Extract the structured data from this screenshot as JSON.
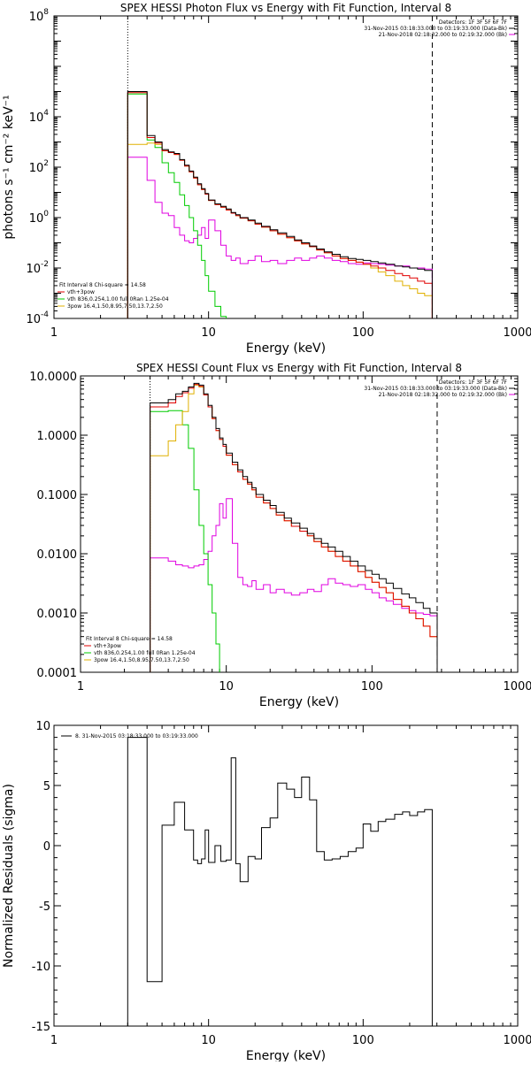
{
  "colors": {
    "total": "#000000",
    "thermal": "#00cc00",
    "powerlaw": "#e0b000",
    "background": "#e000e0",
    "sum": "#e00000"
  },
  "chart_data": [
    {
      "type": "line",
      "title": "SPEX HESSI Photon Flux vs Energy with Fit Function, Interval 8",
      "xlabel": "Energy (keV)",
      "ylabel": "photons s⁻¹ cm⁻² keV⁻¹",
      "xscale": "log",
      "yscale": "log",
      "xlim": [
        1,
        1000
      ],
      "ylim": [
        0.0001,
        100000000
      ],
      "xticks": [
        {
          "v": 1,
          "label": "1"
        },
        {
          "v": 10,
          "label": "10"
        },
        {
          "v": 100,
          "label": "100"
        },
        {
          "v": 1000,
          "label": "1000"
        }
      ],
      "yticks": [
        {
          "v": 0.0001,
          "base": "10",
          "exp": "-4"
        },
        {
          "v": 0.01,
          "base": "10",
          "exp": "-2"
        },
        {
          "v": 1,
          "base": "10",
          "exp": "0"
        },
        {
          "v": 100,
          "base": "10",
          "exp": "2"
        },
        {
          "v": 10000,
          "base": "10",
          "exp": "4"
        },
        {
          "v": 100000000,
          "base": "10",
          "exp": "8"
        }
      ],
      "legend_top": [
        "Detectors: 1F 3F 5F 6F 7F",
        "31-Nov-2015 03:18:33.000 to 03:19:33.000 (Data-Bk)",
        "21-Nov-2018 02:18:32.000 to 02:19:32.000 (Bk)"
      ],
      "legend_bottom": [
        "Fit Interval 8   Chi-square = 14.58",
        "vth+3pow",
        "vth 836,0.254,1.00  full 0Ran 1.25e-04",
        "3pow 16.4,1.50,8.95,7.50,13.7,2.50"
      ],
      "vlines": {
        "dotted": 3,
        "dashed": 280
      },
      "edges": [
        3,
        3.5,
        4,
        4.5,
        5,
        5.5,
        6,
        6.5,
        7,
        7.5,
        8,
        8.5,
        9,
        9.5,
        10,
        11,
        12,
        13,
        14,
        15,
        16,
        18,
        20,
        22,
        25,
        28,
        32,
        36,
        40,
        45,
        50,
        56,
        63,
        71,
        80,
        90,
        100,
        112,
        125,
        140,
        160,
        180,
        200,
        225,
        250,
        280
      ],
      "series": [
        {
          "key": "total",
          "values": [
            100000,
            100000,
            1800,
            1000,
            500,
            400,
            350,
            200,
            120,
            70,
            40,
            22,
            14,
            9,
            5,
            3.5,
            2.8,
            2.2,
            1.6,
            1.3,
            1.0,
            0.8,
            0.6,
            0.45,
            0.33,
            0.25,
            0.18,
            0.13,
            0.1,
            0.075,
            0.057,
            0.044,
            0.035,
            0.028,
            0.024,
            0.022,
            0.02,
            0.018,
            0.016,
            0.014,
            0.012,
            0.011,
            0.01,
            0.009,
            0.008
          ]
        },
        {
          "key": "sum",
          "values": [
            90000,
            90000,
            1500,
            900,
            450,
            380,
            320,
            190,
            110,
            65,
            37,
            20,
            13,
            8.5,
            4.8,
            3.3,
            2.6,
            2.0,
            1.5,
            1.2,
            0.95,
            0.75,
            0.55,
            0.42,
            0.3,
            0.22,
            0.16,
            0.12,
            0.09,
            0.07,
            0.052,
            0.04,
            0.03,
            0.024,
            0.02,
            0.017,
            0.014,
            0.012,
            0.01,
            0.008,
            0.006,
            0.005,
            0.004,
            0.003,
            0.0025
          ]
        },
        {
          "key": "thermal",
          "values": [
            80000,
            80000,
            1200,
            600,
            150,
            60,
            25,
            8,
            3,
            1,
            0.3,
            0.08,
            0.02,
            0.005,
            0.0012,
            0.0003,
            0.00012
          ]
        },
        {
          "key": "powerlaw",
          "values": [
            800,
            800,
            900,
            800,
            450,
            380,
            320,
            190,
            110,
            65,
            37,
            20,
            13,
            8.5,
            4.8,
            3.3,
            2.6,
            2.0,
            1.5,
            1.2,
            0.95,
            0.75,
            0.55,
            0.42,
            0.3,
            0.22,
            0.16,
            0.12,
            0.09,
            0.07,
            0.052,
            0.04,
            0.03,
            0.024,
            0.02,
            0.017,
            0.014,
            0.01,
            0.007,
            0.005,
            0.003,
            0.002,
            0.0015,
            0.001,
            0.0008
          ]
        },
        {
          "key": "background",
          "values": [
            250,
            250,
            30,
            4,
            1.5,
            1.2,
            0.4,
            0.2,
            0.12,
            0.1,
            0.15,
            0.2,
            0.4,
            0.15,
            0.8,
            0.3,
            0.08,
            0.03,
            0.02,
            0.025,
            0.015,
            0.02,
            0.03,
            0.018,
            0.02,
            0.015,
            0.02,
            0.025,
            0.02,
            0.025,
            0.03,
            0.025,
            0.02,
            0.018,
            0.015,
            0.014,
            0.016,
            0.015,
            0.014,
            0.013,
            0.012,
            0.012,
            0.01,
            0.01,
            0.009
          ]
        }
      ]
    },
    {
      "type": "line",
      "title": "SPEX HESSI Count Flux vs Energy with Fit Function, Interval 8",
      "xlabel": "Energy (keV)",
      "ylabel": "",
      "xscale": "log",
      "yscale": "log",
      "xlim": [
        1,
        1000
      ],
      "ylim": [
        0.0001,
        10
      ],
      "xticks": [
        {
          "v": 1,
          "label": "1"
        },
        {
          "v": 10,
          "label": "10"
        },
        {
          "v": 100,
          "label": "100"
        },
        {
          "v": 1000,
          "label": "1000"
        }
      ],
      "yticks": [
        {
          "v": 0.0001,
          "label": "0.0001"
        },
        {
          "v": 0.001,
          "label": "0.0010"
        },
        {
          "v": 0.01,
          "label": "0.0100"
        },
        {
          "v": 0.1,
          "label": "0.1000"
        },
        {
          "v": 1,
          "label": "1.0000"
        },
        {
          "v": 10,
          "label": "10.0000"
        }
      ],
      "legend_top": [
        "Detectors: 1F 3F 5F 6F 7F",
        "31-Nov-2015 03:18:33.000 to 03:19:33.000 (Data-Bk)",
        "21-Nov-2018 02:18:32.000 to 02:19:32.000 (Bk)"
      ],
      "legend_bottom": [
        "Fit Interval 8   Chi-square = 14.58",
        "vth+3pow",
        "vth 836,0.254,1.00  full 0Ran 1.25e-04",
        "3pow 16.4,1.50,8.95,7.50,13.7,2.50"
      ],
      "vlines": {
        "dotted": 3,
        "dashed": 280
      },
      "edges": [
        3,
        3.5,
        4,
        4.5,
        5,
        5.5,
        6,
        6.5,
        7,
        7.5,
        8,
        8.5,
        9,
        9.5,
        10,
        11,
        12,
        13,
        14,
        15,
        16,
        18,
        20,
        22,
        25,
        28,
        32,
        36,
        40,
        45,
        50,
        56,
        63,
        71,
        80,
        90,
        100,
        112,
        125,
        140,
        160,
        180,
        200,
        225,
        250,
        280
      ],
      "series": [
        {
          "key": "total",
          "values": [
            3.5,
            3.5,
            4.0,
            5.0,
            5.5,
            6.5,
            7.5,
            7.0,
            5.0,
            3.2,
            2.0,
            1.3,
            0.9,
            0.7,
            0.5,
            0.35,
            0.26,
            0.2,
            0.16,
            0.13,
            0.1,
            0.08,
            0.065,
            0.05,
            0.04,
            0.033,
            0.027,
            0.022,
            0.018,
            0.015,
            0.013,
            0.011,
            0.009,
            0.0075,
            0.0062,
            0.0052,
            0.0045,
            0.0038,
            0.0032,
            0.0026,
            0.0021,
            0.0018,
            0.0015,
            0.0012,
            0.001
          ]
        },
        {
          "key": "sum",
          "values": [
            3.0,
            3.0,
            3.5,
            4.5,
            5.2,
            6.2,
            7.2,
            6.7,
            4.8,
            3.0,
            1.9,
            1.2,
            0.85,
            0.65,
            0.46,
            0.32,
            0.24,
            0.18,
            0.15,
            0.12,
            0.09,
            0.072,
            0.058,
            0.045,
            0.036,
            0.029,
            0.024,
            0.02,
            0.016,
            0.013,
            0.011,
            0.009,
            0.0075,
            0.0062,
            0.005,
            0.004,
            0.0033,
            0.0027,
            0.0022,
            0.0017,
            0.0013,
            0.001,
            0.0008,
            0.0006,
            0.0004
          ]
        },
        {
          "key": "thermal",
          "values": [
            2.5,
            2.5,
            2.6,
            2.6,
            1.5,
            0.6,
            0.12,
            0.03,
            0.01,
            0.003,
            0.001,
            0.0003,
            8e-05
          ]
        },
        {
          "key": "powerlaw",
          "values": [
            0.45,
            0.45,
            0.8,
            1.5,
            2.5,
            5.0,
            7.0,
            6.5,
            4.8,
            3.0,
            1.9,
            1.2,
            0.85,
            0.65,
            0.46,
            0.32,
            0.24,
            0.18,
            0.15,
            0.12,
            0.09,
            0.072,
            0.058,
            0.045,
            0.036,
            0.029,
            0.024,
            0.02,
            0.016,
            0.013,
            0.011,
            0.009,
            0.0075,
            0.0062,
            0.005,
            0.004,
            0.0033,
            0.0027,
            0.0022,
            0.0017,
            0.0013,
            0.001,
            0.0008,
            0.0006,
            0.0004
          ]
        },
        {
          "key": "background",
          "values": [
            0.0085,
            0.0085,
            0.0075,
            0.0065,
            0.0062,
            0.0058,
            0.0062,
            0.0065,
            0.008,
            0.011,
            0.02,
            0.03,
            0.07,
            0.04,
            0.085,
            0.015,
            0.004,
            0.003,
            0.0028,
            0.0035,
            0.0025,
            0.003,
            0.0022,
            0.0025,
            0.0022,
            0.002,
            0.0022,
            0.0025,
            0.0023,
            0.003,
            0.0038,
            0.0032,
            0.003,
            0.0028,
            0.003,
            0.0025,
            0.0022,
            0.0018,
            0.0016,
            0.0014,
            0.0012,
            0.0011,
            0.001,
            0.00095,
            0.0009
          ]
        }
      ]
    },
    {
      "type": "line",
      "title": "",
      "xlabel": "Energy (keV)",
      "ylabel": "Normalized Residuals (sigma)",
      "xscale": "log",
      "yscale": "linear",
      "xlim": [
        1,
        1000
      ],
      "ylim": [
        -15,
        10
      ],
      "xticks": [
        {
          "v": 1,
          "label": "1"
        },
        {
          "v": 10,
          "label": "10"
        },
        {
          "v": 100,
          "label": "100"
        },
        {
          "v": 1000,
          "label": "1000"
        }
      ],
      "yticks": [
        {
          "v": -15,
          "label": "-15"
        },
        {
          "v": -10,
          "label": "-10"
        },
        {
          "v": -5,
          "label": "-5"
        },
        {
          "v": 0,
          "label": "0"
        },
        {
          "v": 5,
          "label": "5"
        },
        {
          "v": 10,
          "label": "10"
        }
      ],
      "legend_top": [
        "8. 31-Nov-2015 03:18:33.000 to 03:19:33.000"
      ],
      "legend_bottom": [],
      "edges": [
        3,
        3.5,
        4,
        4.5,
        5,
        5.5,
        6,
        6.5,
        7,
        7.5,
        8,
        8.5,
        9,
        9.5,
        10,
        11,
        12,
        13,
        14,
        15,
        16,
        18,
        20,
        22,
        25,
        28,
        32,
        36,
        40,
        45,
        50,
        56,
        63,
        71,
        80,
        90,
        100,
        112,
        125,
        140,
        160,
        180,
        200,
        225,
        250,
        280
      ],
      "series": [
        {
          "key": "total",
          "values": [
            9,
            9,
            -11.3,
            -11.3,
            1.7,
            1.7,
            3.6,
            3.6,
            1.3,
            1.3,
            -1.2,
            -1.5,
            -1.1,
            1.3,
            -1.4,
            0,
            -1.3,
            -1.2,
            7.3,
            -1.5,
            -3,
            -0.9,
            -1.1,
            1.5,
            2.3,
            5.2,
            4.7,
            4.0,
            5.7,
            3.8,
            -0.5,
            -1.2,
            -1.1,
            -0.9,
            -0.5,
            -0.2,
            1.8,
            1.2,
            2.0,
            2.2,
            2.6,
            2.8,
            2.5,
            2.8,
            3.0
          ]
        }
      ]
    }
  ]
}
